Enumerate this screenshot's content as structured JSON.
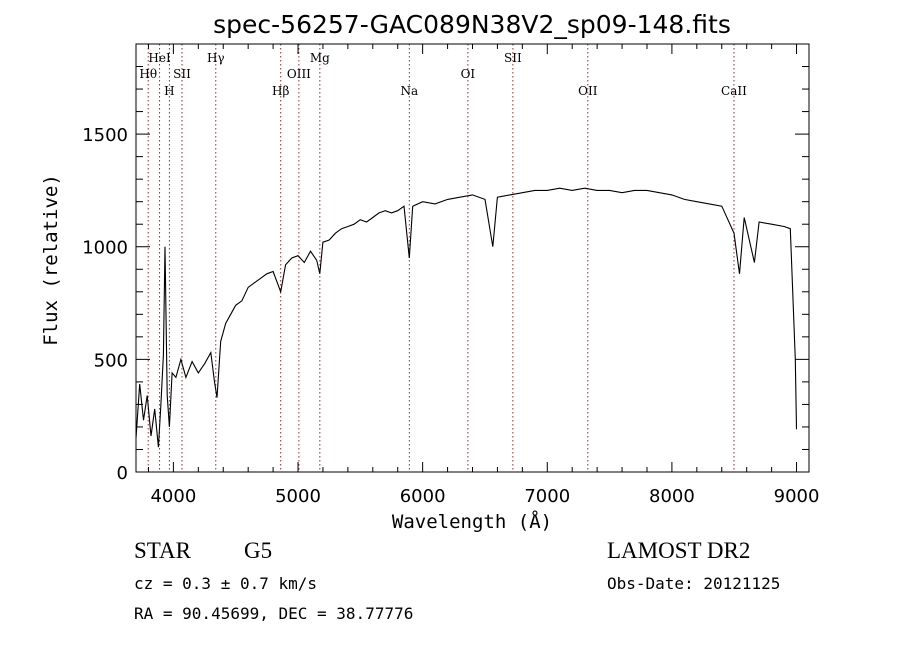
{
  "chart_data": {
    "type": "line",
    "title": "spec-56257-GAC089N38V2_sp09-148.fits",
    "xlabel": "Wavelength (Å)",
    "ylabel": "Flux (relative)",
    "xlim": [
      3700,
      9100
    ],
    "ylim": [
      0,
      1900
    ],
    "xticks": [
      4000,
      5000,
      6000,
      7000,
      8000,
      9000
    ],
    "yticks": [
      0,
      500,
      1000,
      1500
    ],
    "xtick_labels": [
      "4000",
      "5000",
      "6000",
      "7000",
      "8000",
      "9000"
    ],
    "ytick_labels": [
      "0",
      "500",
      "1000",
      "1500"
    ],
    "grid": false,
    "series": [
      {
        "values": [
          [
            3700,
            150
          ],
          [
            3730,
            390
          ],
          [
            3760,
            230
          ],
          [
            3790,
            340
          ],
          [
            3820,
            160
          ],
          [
            3850,
            280
          ],
          [
            3880,
            110
          ],
          [
            3900,
            300
          ],
          [
            3920,
            520
          ],
          [
            3933,
            1000
          ],
          [
            3950,
            340
          ],
          [
            3968,
            200
          ],
          [
            3990,
            440
          ],
          [
            4020,
            420
          ],
          [
            4060,
            500
          ],
          [
            4100,
            420
          ],
          [
            4150,
            490
          ],
          [
            4200,
            440
          ],
          [
            4250,
            480
          ],
          [
            4300,
            530
          ],
          [
            4330,
            400
          ],
          [
            4350,
            330
          ],
          [
            4380,
            580
          ],
          [
            4420,
            660
          ],
          [
            4460,
            700
          ],
          [
            4500,
            740
          ],
          [
            4550,
            760
          ],
          [
            4600,
            820
          ],
          [
            4650,
            840
          ],
          [
            4700,
            860
          ],
          [
            4750,
            880
          ],
          [
            4800,
            890
          ],
          [
            4861,
            800
          ],
          [
            4900,
            920
          ],
          [
            4950,
            950
          ],
          [
            5000,
            960
          ],
          [
            5050,
            930
          ],
          [
            5100,
            980
          ],
          [
            5150,
            940
          ],
          [
            5175,
            880
          ],
          [
            5200,
            1020
          ],
          [
            5250,
            1030
          ],
          [
            5300,
            1060
          ],
          [
            5350,
            1080
          ],
          [
            5400,
            1090
          ],
          [
            5450,
            1100
          ],
          [
            5500,
            1120
          ],
          [
            5550,
            1110
          ],
          [
            5600,
            1130
          ],
          [
            5650,
            1150
          ],
          [
            5700,
            1160
          ],
          [
            5750,
            1150
          ],
          [
            5800,
            1160
          ],
          [
            5850,
            1180
          ],
          [
            5893,
            950
          ],
          [
            5920,
            1180
          ],
          [
            6000,
            1200
          ],
          [
            6100,
            1190
          ],
          [
            6200,
            1210
          ],
          [
            6300,
            1220
          ],
          [
            6400,
            1230
          ],
          [
            6500,
            1210
          ],
          [
            6563,
            1000
          ],
          [
            6600,
            1220
          ],
          [
            6700,
            1230
          ],
          [
            6800,
            1240
          ],
          [
            6900,
            1250
          ],
          [
            7000,
            1250
          ],
          [
            7100,
            1260
          ],
          [
            7200,
            1250
          ],
          [
            7300,
            1260
          ],
          [
            7400,
            1250
          ],
          [
            7500,
            1250
          ],
          [
            7600,
            1240
          ],
          [
            7700,
            1250
          ],
          [
            7800,
            1250
          ],
          [
            7900,
            1240
          ],
          [
            8000,
            1230
          ],
          [
            8100,
            1210
          ],
          [
            8200,
            1200
          ],
          [
            8300,
            1190
          ],
          [
            8400,
            1180
          ],
          [
            8498,
            1060
          ],
          [
            8542,
            880
          ],
          [
            8580,
            1130
          ],
          [
            8662,
            930
          ],
          [
            8700,
            1110
          ],
          [
            8800,
            1100
          ],
          [
            8900,
            1090
          ],
          [
            8950,
            1080
          ],
          [
            8990,
            500
          ],
          [
            9000,
            190
          ]
        ]
      }
    ],
    "lines": [
      {
        "label": "Hθ",
        "wavelength": 3798,
        "row": 2
      },
      {
        "label": "HeI",
        "wavelength": 3889,
        "row": 1
      },
      {
        "label": "H",
        "wavelength": 3968,
        "row": 3
      },
      {
        "label": "SII",
        "wavelength": 4069,
        "row": 2
      },
      {
        "label": "Hγ",
        "wavelength": 4340,
        "row": 1
      },
      {
        "label": "Hβ",
        "wavelength": 4861,
        "row": 3
      },
      {
        "label": "OIII",
        "wavelength": 5007,
        "row": 2
      },
      {
        "label": "Mg",
        "wavelength": 5175,
        "row": 1
      },
      {
        "label": "Na",
        "wavelength": 5893,
        "row": 3
      },
      {
        "label": "OI",
        "wavelength": 6363,
        "row": 2
      },
      {
        "label": "SII",
        "wavelength": 6724,
        "row": 1
      },
      {
        "label": "OII",
        "wavelength": 7325,
        "row": 3
      },
      {
        "label": "CaII",
        "wavelength": 8498,
        "row": 3
      }
    ]
  },
  "info": {
    "object_class": "STAR",
    "subclass": "G5",
    "survey": "LAMOST DR2",
    "redshift": "cz = 0.3 ± 0.7 km/s",
    "obs_date": "Obs-Date: 20121125",
    "coords": "RA =  90.45699, DEC =  38.77776"
  },
  "colors": {
    "spectrum": "#000000",
    "line_marker": "#b22222",
    "axes": "#000000"
  }
}
